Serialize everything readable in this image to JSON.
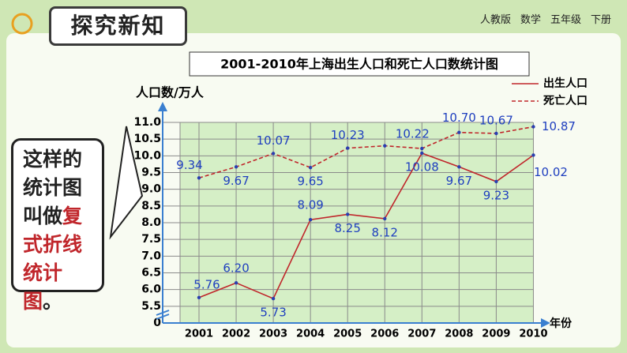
{
  "header": {
    "title": "探究新知",
    "textbook": [
      "人教版",
      "数学",
      "五年级",
      "下册"
    ]
  },
  "callout": {
    "before": "这样的统计图叫做",
    "emphasis": "复式折线统计图",
    "after": "。"
  },
  "chart_data": {
    "type": "line",
    "title": "2001-2010年上海出生人口和死亡人口数统计图",
    "y_label": "人口数/万人",
    "x_label": "年份",
    "categories": [
      "2001",
      "2002",
      "2003",
      "2004",
      "2005",
      "2006",
      "2007",
      "2008",
      "2009",
      "2010"
    ],
    "series": [
      {
        "name": "出生人口",
        "color": "#c0262b",
        "dash": false,
        "values": [
          5.76,
          6.2,
          5.73,
          8.09,
          8.25,
          8.12,
          10.08,
          9.67,
          9.23,
          10.02
        ],
        "value_labels": [
          "5.76",
          "6.20",
          "5.73",
          "8.09",
          "8.25",
          "8.12",
          "10.08",
          "9.67",
          "9.23",
          "10.02"
        ]
      },
      {
        "name": "死亡人口",
        "color": "#c0262b",
        "dash": true,
        "values": [
          9.34,
          9.67,
          10.07,
          9.65,
          10.23,
          10.3,
          10.22,
          10.7,
          10.67,
          10.87
        ],
        "value_labels": [
          "9.34",
          "9.67",
          "10.07",
          "9.65",
          "10.23",
          null,
          "10.22",
          "10.70",
          "10.67",
          "10.87"
        ]
      }
    ],
    "ylim": [
      5,
      11
    ],
    "axis_break": true,
    "yticks": [
      {
        "value": 0,
        "label": "0"
      },
      5.5,
      {
        "value": 6,
        "label": "6.0"
      },
      6.5,
      {
        "value": 7,
        "label": "7.0"
      },
      7.5,
      {
        "value": 8,
        "label": "8.0"
      },
      8.5,
      {
        "value": 9,
        "label": "9.0"
      },
      9.5,
      {
        "value": 10,
        "label": "10.0"
      },
      10.5,
      {
        "value": 11,
        "label": "11.0"
      }
    ],
    "grid": true,
    "legend": "upper right"
  }
}
